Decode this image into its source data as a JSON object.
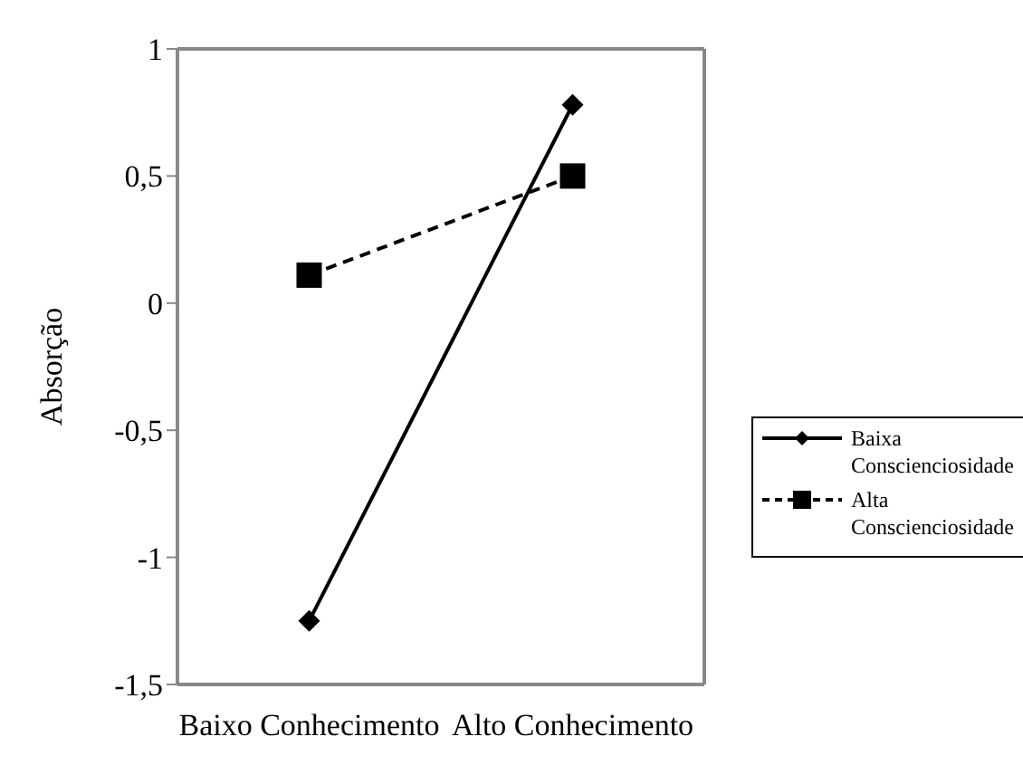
{
  "chart_data": {
    "type": "line",
    "ylabel": "Absorção",
    "categories": [
      "Baixo Conhecimento",
      "Alto Conhecimento"
    ],
    "series": [
      {
        "name": "Baixa Conscienciosidade",
        "color": "#000000",
        "values": [
          -1.25,
          0.78
        ],
        "marker": "diamond",
        "line_style": "solid"
      },
      {
        "name": "Alta Conscienciosidade",
        "color": "#000000",
        "values": [
          0.11,
          0.5
        ],
        "marker": "square",
        "line_style": "dashed"
      }
    ],
    "ylim": [
      -1.5,
      1
    ],
    "yticks": [
      {
        "value": -1.5,
        "label": "-1,5"
      },
      {
        "value": -1,
        "label": "-1"
      },
      {
        "value": -0.5,
        "label": "-0,5"
      },
      {
        "value": 0,
        "label": "0"
      },
      {
        "value": 0.5,
        "label": "0,5"
      },
      {
        "value": 1,
        "label": "1"
      }
    ],
    "grid": false,
    "legend": "right"
  }
}
